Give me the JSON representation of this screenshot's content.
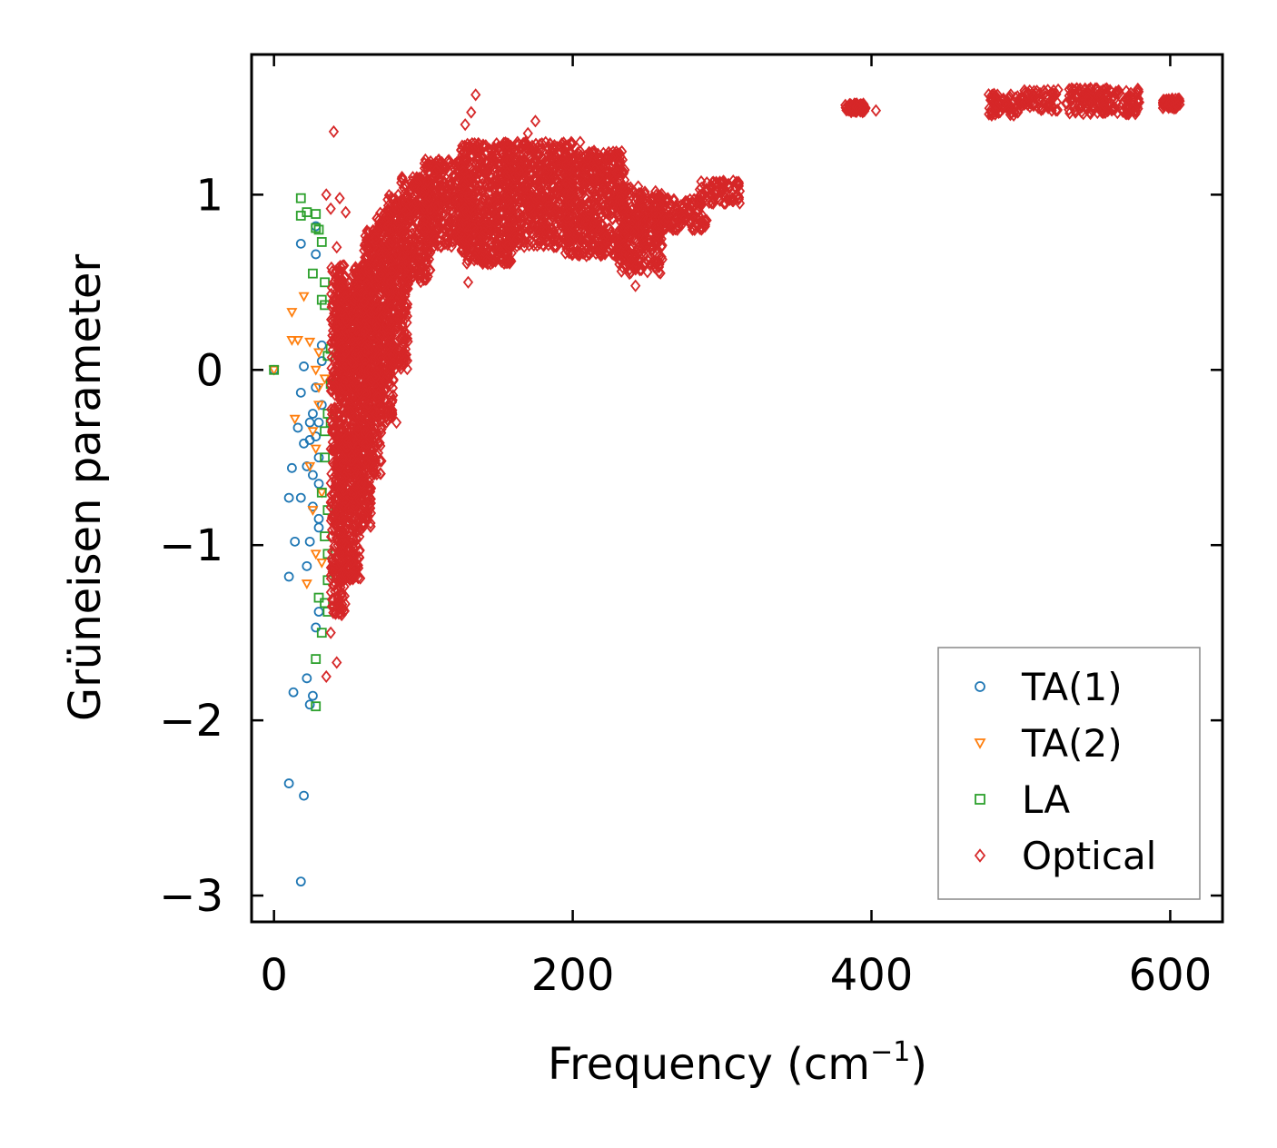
{
  "chart_data": {
    "type": "scatter",
    "title": "",
    "xlabel": "Frequency (cm",
    "xlabel_sup": "−1",
    "xlabel_end": ")",
    "ylabel": "Grüneisen parameter",
    "xlim": [
      -15,
      635
    ],
    "ylim": [
      -3.15,
      1.8
    ],
    "xticks": [
      0,
      200,
      400,
      600
    ],
    "xtick_labels": [
      "0",
      "200",
      "400",
      "600"
    ],
    "yticks": [
      -3,
      -2,
      -1,
      0,
      1
    ],
    "ytick_labels": [
      "−3",
      "−2",
      "−1",
      "0",
      "1"
    ],
    "grid": false,
    "legend_position": "lower-right",
    "series": [
      {
        "name": "TA(1)",
        "marker": "circle",
        "color": "#1f77b4",
        "points": [
          [
            0,
            0
          ],
          [
            10,
            -2.36
          ],
          [
            13,
            -1.84
          ],
          [
            20,
            -2.43
          ],
          [
            18,
            -2.92
          ],
          [
            10,
            -1.18
          ],
          [
            14,
            -0.98
          ],
          [
            12,
            -0.56
          ],
          [
            10,
            -0.73
          ],
          [
            18,
            -0.73
          ],
          [
            16,
            -0.33
          ],
          [
            18,
            -0.13
          ],
          [
            20,
            0.02
          ],
          [
            22,
            -1.76
          ],
          [
            24,
            -1.91
          ],
          [
            26,
            -1.86
          ],
          [
            22,
            -1.12
          ],
          [
            24,
            -0.98
          ],
          [
            26,
            -0.6
          ],
          [
            24,
            -0.4
          ],
          [
            26,
            -0.25
          ],
          [
            28,
            -0.1
          ],
          [
            28,
            0.66
          ],
          [
            28,
            0.82
          ],
          [
            18,
            0.72
          ],
          [
            30,
            -1.38
          ],
          [
            30,
            -0.85
          ],
          [
            30,
            -0.5
          ],
          [
            30,
            -0.3
          ],
          [
            32,
            -0.2
          ],
          [
            32,
            0.05
          ],
          [
            32,
            0.14
          ],
          [
            22,
            -0.55
          ],
          [
            26,
            -0.78
          ],
          [
            28,
            -1.47
          ],
          [
            20,
            -0.42
          ],
          [
            24,
            -0.3
          ],
          [
            30,
            -0.65
          ],
          [
            30,
            -0.9
          ],
          [
            28,
            -0.38
          ]
        ]
      },
      {
        "name": "TA(2)",
        "marker": "triangle-down",
        "color": "#ff7f0e",
        "points": [
          [
            0,
            0
          ],
          [
            14,
            -0.28
          ],
          [
            12,
            0.17
          ],
          [
            12,
            0.33
          ],
          [
            16,
            0.17
          ],
          [
            20,
            0.42
          ],
          [
            22,
            -1.22
          ],
          [
            24,
            -0.55
          ],
          [
            26,
            -0.35
          ],
          [
            28,
            0.0
          ],
          [
            30,
            -0.1
          ],
          [
            30,
            -0.2
          ],
          [
            32,
            -1.1
          ],
          [
            28,
            -0.45
          ],
          [
            24,
            0.16
          ],
          [
            30,
            0.1
          ],
          [
            34,
            -0.05
          ],
          [
            26,
            -0.8
          ],
          [
            28,
            -1.05
          ],
          [
            32,
            -0.7
          ]
        ]
      },
      {
        "name": "LA",
        "marker": "square",
        "color": "#2ca02c",
        "points": [
          [
            0,
            0
          ],
          [
            18,
            0.98
          ],
          [
            18,
            0.88
          ],
          [
            22,
            0.9
          ],
          [
            28,
            0.89
          ],
          [
            28,
            0.81
          ],
          [
            30,
            0.8
          ],
          [
            32,
            0.73
          ],
          [
            26,
            0.55
          ],
          [
            34,
            0.5
          ],
          [
            32,
            0.4
          ],
          [
            34,
            0.37
          ],
          [
            36,
            0.08
          ],
          [
            38,
            -0.08
          ],
          [
            36,
            -0.25
          ],
          [
            34,
            -0.35
          ],
          [
            34,
            -0.5
          ],
          [
            32,
            -0.7
          ],
          [
            34,
            -0.95
          ],
          [
            36,
            -1.05
          ],
          [
            36,
            -1.2
          ],
          [
            30,
            -1.3
          ],
          [
            34,
            -1.33
          ],
          [
            32,
            -1.5
          ],
          [
            28,
            -1.65
          ],
          [
            28,
            -1.92
          ],
          [
            36,
            -1.38
          ],
          [
            38,
            -0.3
          ],
          [
            38,
            0.12
          ],
          [
            36,
            -0.8
          ]
        ]
      },
      {
        "name": "Optical",
        "marker": "diamond",
        "color": "#d62728",
        "points": [
          [
            40,
            1.36
          ],
          [
            35,
            1.0
          ],
          [
            44,
            0.98
          ],
          [
            48,
            0.9
          ],
          [
            38,
            0.92
          ],
          [
            42,
            0.7
          ],
          [
            40,
            0.5
          ],
          [
            45,
            0.4
          ],
          [
            42,
            0.2
          ],
          [
            48,
            0.1
          ],
          [
            40,
            -0.1
          ],
          [
            44,
            -0.3
          ],
          [
            46,
            -0.5
          ],
          [
            42,
            -0.8
          ],
          [
            48,
            -1.0
          ],
          [
            44,
            -1.2
          ],
          [
            40,
            -1.35
          ],
          [
            46,
            -1.3
          ],
          [
            35,
            -1.75
          ],
          [
            42,
            -1.67
          ],
          [
            38,
            -1.5
          ],
          [
            52,
            -1.1
          ],
          [
            55,
            -0.9
          ],
          [
            60,
            -0.6
          ],
          [
            58,
            -0.3
          ],
          [
            65,
            0.0
          ],
          [
            70,
            -0.2
          ],
          [
            72,
            0.3
          ],
          [
            78,
            0.5
          ],
          [
            82,
            -0.3
          ],
          [
            80,
            0.8
          ],
          [
            88,
            0.7
          ],
          [
            95,
            0.95
          ],
          [
            100,
            1.0
          ],
          [
            105,
            0.85
          ],
          [
            110,
            0.8
          ],
          [
            118,
            0.9
          ],
          [
            125,
            1.1
          ],
          [
            128,
            1.4
          ],
          [
            132,
            1.47
          ],
          [
            135,
            1.57
          ],
          [
            130,
            0.5
          ],
          [
            140,
            0.7
          ],
          [
            148,
            0.95
          ],
          [
            155,
            1.1
          ],
          [
            160,
            1.2
          ],
          [
            165,
            0.8
          ],
          [
            170,
            1.35
          ],
          [
            175,
            1.42
          ],
          [
            180,
            1.0
          ],
          [
            188,
            0.9
          ],
          [
            195,
            0.75
          ],
          [
            200,
            1.1
          ],
          [
            205,
            1.3
          ],
          [
            210,
            0.9
          ],
          [
            218,
            0.8
          ],
          [
            225,
            1.0
          ],
          [
            230,
            0.7
          ],
          [
            238,
            0.55
          ],
          [
            242,
            0.48
          ],
          [
            248,
            0.65
          ],
          [
            255,
            0.9
          ],
          [
            262,
            0.85
          ],
          [
            270,
            0.8
          ],
          [
            278,
            0.9
          ],
          [
            285,
            0.95
          ],
          [
            292,
            1.0
          ],
          [
            300,
            1.02
          ],
          [
            305,
            1.05
          ],
          [
            310,
            1.06
          ],
          [
            385,
            1.49
          ],
          [
            390,
            1.5
          ],
          [
            395,
            1.49
          ],
          [
            403,
            1.48
          ],
          [
            480,
            1.56
          ],
          [
            490,
            1.52
          ],
          [
            498,
            1.47
          ],
          [
            505,
            1.58
          ],
          [
            512,
            1.54
          ],
          [
            520,
            1.52
          ],
          [
            535,
            1.6
          ],
          [
            545,
            1.55
          ],
          [
            555,
            1.5
          ],
          [
            562,
            1.56
          ],
          [
            570,
            1.5
          ],
          [
            575,
            1.49
          ],
          [
            600,
            1.53
          ],
          [
            605,
            1.51
          ]
        ],
        "bands": [
          {
            "x": [
              38,
              48
            ],
            "y": [
              -1.4,
              0.6
            ]
          },
          {
            "x": [
              44,
              58
            ],
            "y": [
              -1.2,
              0.5
            ]
          },
          {
            "x": [
              52,
              65
            ],
            "y": [
              -0.9,
              0.6
            ]
          },
          {
            "x": [
              60,
              72
            ],
            "y": [
              -0.6,
              0.8
            ]
          },
          {
            "x": [
              68,
              80
            ],
            "y": [
              -0.3,
              0.9
            ]
          },
          {
            "x": [
              75,
              90
            ],
            "y": [
              0.0,
              1.0
            ]
          },
          {
            "x": [
              85,
              105
            ],
            "y": [
              0.5,
              1.1
            ]
          },
          {
            "x": [
              100,
              130
            ],
            "y": [
              0.7,
              1.2
            ]
          },
          {
            "x": [
              125,
              160
            ],
            "y": [
              0.6,
              1.3
            ]
          },
          {
            "x": [
              155,
              200
            ],
            "y": [
              0.7,
              1.3
            ]
          },
          {
            "x": [
              195,
              235
            ],
            "y": [
              0.65,
              1.25
            ]
          },
          {
            "x": [
              230,
              260
            ],
            "y": [
              0.55,
              1.05
            ]
          },
          {
            "x": [
              255,
              290
            ],
            "y": [
              0.8,
              0.98
            ]
          },
          {
            "x": [
              285,
              312
            ],
            "y": [
              0.95,
              1.08
            ]
          },
          {
            "x": [
              382,
              396
            ],
            "y": [
              1.47,
              1.52
            ]
          },
          {
            "x": [
              478,
              500
            ],
            "y": [
              1.45,
              1.58
            ]
          },
          {
            "x": [
              500,
              525
            ],
            "y": [
              1.48,
              1.6
            ]
          },
          {
            "x": [
              530,
              580
            ],
            "y": [
              1.46,
              1.61
            ]
          },
          {
            "x": [
              595,
              607
            ],
            "y": [
              1.49,
              1.55
            ]
          }
        ]
      }
    ]
  }
}
